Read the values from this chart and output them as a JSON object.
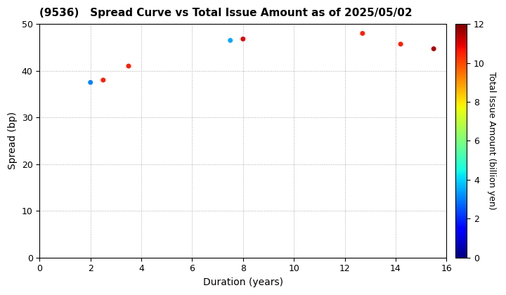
{
  "title": "(9536)   Spread Curve vs Total Issue Amount as of 2025/05/02",
  "xlabel": "Duration (years)",
  "ylabel": "Spread (bp)",
  "colorbar_label": "Total Issue Amount (billion yen)",
  "xlim": [
    0,
    16
  ],
  "ylim": [
    0,
    50
  ],
  "xticks": [
    0,
    2,
    4,
    6,
    8,
    10,
    12,
    14,
    16
  ],
  "yticks": [
    0,
    10,
    20,
    30,
    40,
    50
  ],
  "colorbar_ticks": [
    0,
    2,
    4,
    6,
    8,
    10,
    12
  ],
  "colormap": "jet",
  "vmin": 0,
  "vmax": 12,
  "scatter_points": [
    {
      "duration": 2.0,
      "spread": 37.5,
      "amount": 3.0
    },
    {
      "duration": 2.5,
      "spread": 38.0,
      "amount": 10.5
    },
    {
      "duration": 3.5,
      "spread": 41.0,
      "amount": 10.5
    },
    {
      "duration": 7.5,
      "spread": 46.5,
      "amount": 3.5
    },
    {
      "duration": 8.0,
      "spread": 46.8,
      "amount": 11.0
    },
    {
      "duration": 12.7,
      "spread": 48.0,
      "amount": 10.5
    },
    {
      "duration": 14.2,
      "spread": 45.7,
      "amount": 10.5
    },
    {
      "duration": 15.5,
      "spread": 44.7,
      "amount": 11.5
    }
  ],
  "marker_size": 25,
  "bg_color": "#ffffff",
  "grid_color": "#aaaaaa",
  "title_fontsize": 11,
  "label_fontsize": 10,
  "tick_fontsize": 9,
  "colorbar_label_fontsize": 9
}
